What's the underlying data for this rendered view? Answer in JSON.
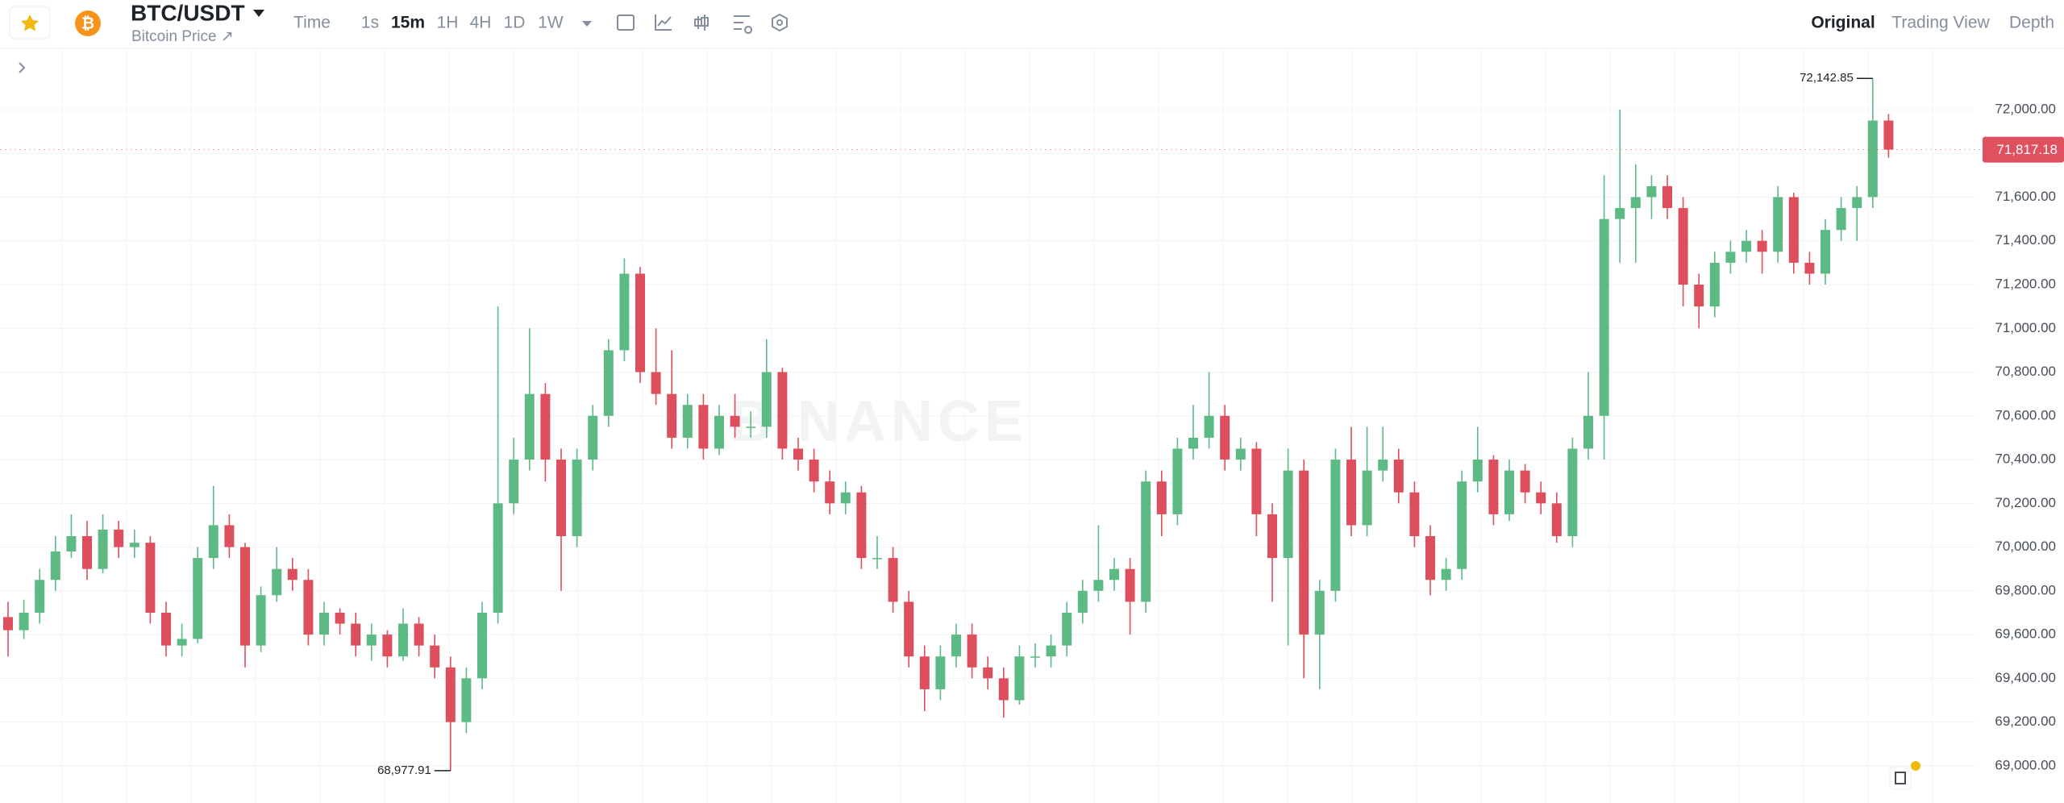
{
  "header": {
    "symbol": "BTC/USDT",
    "subtitle": "Bitcoin Price ↗",
    "intervals": [
      "Time",
      "1s",
      "15m",
      "1H",
      "4H",
      "1D",
      "1W"
    ],
    "active_interval": "15m",
    "views": [
      "Original",
      "Trading View",
      "Depth"
    ],
    "active_view": "Original"
  },
  "chart_data": {
    "type": "candlestick",
    "watermark": "BINANCE",
    "up_color": "#5dba85",
    "down_color": "#dd4f5d",
    "grid": true,
    "ylim": [
      68830,
      72280
    ],
    "yticks": [
      {
        "value": 69000,
        "label": "69,000.00"
      },
      {
        "value": 69200,
        "label": "69,200.00"
      },
      {
        "value": 69400,
        "label": "69,400.00"
      },
      {
        "value": 69600,
        "label": "69,600.00"
      },
      {
        "value": 69800,
        "label": "69,800.00"
      },
      {
        "value": 70000,
        "label": "70,000.00"
      },
      {
        "value": 70200,
        "label": "70,200.00"
      },
      {
        "value": 70400,
        "label": "70,400.00"
      },
      {
        "value": 70600,
        "label": "70,600.00"
      },
      {
        "value": 70800,
        "label": "70,800.00"
      },
      {
        "value": 71000,
        "label": "71,000.00"
      },
      {
        "value": 71200,
        "label": "71,200.00"
      },
      {
        "value": 71400,
        "label": "71,400.00"
      },
      {
        "value": 71600,
        "label": "71,600.00"
      },
      {
        "value": 71800,
        "label": "71,800.00"
      },
      {
        "value": 72000,
        "label": "72,000.00"
      }
    ],
    "max_label": {
      "value": 72142.85,
      "label": "72,142.85"
    },
    "min_label": {
      "value": 68977.91,
      "label": "68,977.91"
    },
    "last_price": {
      "value": 71817.18,
      "label": "71,817.18"
    },
    "candles": [
      [
        69680,
        69750,
        69500,
        69620
      ],
      [
        69620,
        69760,
        69580,
        69700
      ],
      [
        69700,
        69900,
        69650,
        69850
      ],
      [
        69850,
        70050,
        69800,
        69980
      ],
      [
        69980,
        70150,
        69950,
        70050
      ],
      [
        70050,
        70120,
        69850,
        69900
      ],
      [
        69900,
        70150,
        69880,
        70080
      ],
      [
        70080,
        70120,
        69950,
        70000
      ],
      [
        70000,
        70080,
        69950,
        70020
      ],
      [
        70020,
        70050,
        69650,
        69700
      ],
      [
        69700,
        69750,
        69500,
        69550
      ],
      [
        69550,
        69650,
        69500,
        69580
      ],
      [
        69580,
        70000,
        69560,
        69950
      ],
      [
        69950,
        70280,
        69900,
        70100
      ],
      [
        70100,
        70150,
        69950,
        70000
      ],
      [
        70000,
        70020,
        69450,
        69550
      ],
      [
        69550,
        69820,
        69520,
        69780
      ],
      [
        69780,
        70000,
        69750,
        69900
      ],
      [
        69900,
        69950,
        69800,
        69850
      ],
      [
        69850,
        69900,
        69550,
        69600
      ],
      [
        69600,
        69750,
        69550,
        69700
      ],
      [
        69700,
        69720,
        69600,
        69650
      ],
      [
        69650,
        69700,
        69500,
        69550
      ],
      [
        69550,
        69650,
        69480,
        69600
      ],
      [
        69600,
        69620,
        69450,
        69500
      ],
      [
        69500,
        69720,
        69480,
        69650
      ],
      [
        69650,
        69680,
        69500,
        69550
      ],
      [
        69550,
        69600,
        69400,
        69450
      ],
      [
        69450,
        69500,
        68977.91,
        69200
      ],
      [
        69200,
        69450,
        69150,
        69400
      ],
      [
        69400,
        69750,
        69350,
        69700
      ],
      [
        69700,
        71100,
        69650,
        70200
      ],
      [
        70200,
        70500,
        70150,
        70400
      ],
      [
        70400,
        71000,
        70350,
        70700
      ],
      [
        70700,
        70750,
        70300,
        70400
      ],
      [
        70400,
        70450,
        69800,
        70050
      ],
      [
        70050,
        70450,
        70000,
        70400
      ],
      [
        70400,
        70650,
        70350,
        70600
      ],
      [
        70600,
        70950,
        70550,
        70900
      ],
      [
        70900,
        71320,
        70850,
        71250
      ],
      [
        71250,
        71280,
        70750,
        70800
      ],
      [
        70800,
        71000,
        70650,
        70700
      ],
      [
        70700,
        70900,
        70450,
        70500
      ],
      [
        70500,
        70700,
        70450,
        70650
      ],
      [
        70650,
        70700,
        70400,
        70450
      ],
      [
        70450,
        70650,
        70420,
        70600
      ],
      [
        70600,
        70700,
        70500,
        70550
      ],
      [
        70550,
        70620,
        70500,
        70550
      ],
      [
        70550,
        70950,
        70500,
        70800
      ],
      [
        70800,
        70820,
        70400,
        70450
      ],
      [
        70450,
        70500,
        70350,
        70400
      ],
      [
        70400,
        70450,
        70250,
        70300
      ],
      [
        70300,
        70350,
        70150,
        70200
      ],
      [
        70200,
        70300,
        70150,
        70250
      ],
      [
        70250,
        70280,
        69900,
        69950
      ],
      [
        69950,
        70050,
        69900,
        69950
      ],
      [
        69950,
        70000,
        69700,
        69750
      ],
      [
        69750,
        69800,
        69450,
        69500
      ],
      [
        69500,
        69550,
        69250,
        69350
      ],
      [
        69350,
        69550,
        69300,
        69500
      ],
      [
        69500,
        69650,
        69450,
        69600
      ],
      [
        69600,
        69650,
        69400,
        69450
      ],
      [
        69450,
        69500,
        69350,
        69400
      ],
      [
        69400,
        69450,
        69220,
        69300
      ],
      [
        69300,
        69550,
        69280,
        69500
      ],
      [
        69500,
        69560,
        69450,
        69500
      ],
      [
        69500,
        69600,
        69450,
        69550
      ],
      [
        69550,
        69750,
        69500,
        69700
      ],
      [
        69700,
        69850,
        69650,
        69800
      ],
      [
        69800,
        70100,
        69750,
        69850
      ],
      [
        69850,
        69950,
        69800,
        69900
      ],
      [
        69900,
        69950,
        69600,
        69750
      ],
      [
        69750,
        70350,
        69700,
        70300
      ],
      [
        70300,
        70350,
        70050,
        70150
      ],
      [
        70150,
        70500,
        70100,
        70450
      ],
      [
        70450,
        70650,
        70400,
        70500
      ],
      [
        70500,
        70800,
        70450,
        70600
      ],
      [
        70600,
        70650,
        70350,
        70400
      ],
      [
        70400,
        70500,
        70350,
        70450
      ],
      [
        70450,
        70480,
        70050,
        70150
      ],
      [
        70150,
        70200,
        69750,
        69950
      ],
      [
        69950,
        70450,
        69550,
        70350
      ],
      [
        70350,
        70400,
        69400,
        69600
      ],
      [
        69600,
        69850,
        69350,
        69800
      ],
      [
        69800,
        70450,
        69750,
        70400
      ],
      [
        70400,
        70550,
        70050,
        70100
      ],
      [
        70100,
        70550,
        70050,
        70350
      ],
      [
        70350,
        70550,
        70300,
        70400
      ],
      [
        70400,
        70450,
        70200,
        70250
      ],
      [
        70250,
        70300,
        70000,
        70050
      ],
      [
        70050,
        70100,
        69780,
        69850
      ],
      [
        69850,
        69950,
        69800,
        69900
      ],
      [
        69900,
        70350,
        69850,
        70300
      ],
      [
        70300,
        70550,
        70250,
        70400
      ],
      [
        70400,
        70420,
        70100,
        70150
      ],
      [
        70150,
        70400,
        70120,
        70350
      ],
      [
        70350,
        70380,
        70200,
        70250
      ],
      [
        70250,
        70300,
        70150,
        70200
      ],
      [
        70200,
        70250,
        70020,
        70050
      ],
      [
        70050,
        70500,
        70000,
        70450
      ],
      [
        70450,
        70800,
        70400,
        70600
      ],
      [
        70600,
        71700,
        70400,
        71500
      ],
      [
        71500,
        72000,
        71300,
        71550
      ],
      [
        71550,
        71750,
        71300,
        71600
      ],
      [
        71600,
        71700,
        71500,
        71650
      ],
      [
        71650,
        71700,
        71500,
        71550
      ],
      [
        71550,
        71600,
        71100,
        71200
      ],
      [
        71200,
        71250,
        71000,
        71100
      ],
      [
        71100,
        71350,
        71050,
        71300
      ],
      [
        71300,
        71400,
        71250,
        71350
      ],
      [
        71350,
        71450,
        71300,
        71400
      ],
      [
        71400,
        71450,
        71250,
        71350
      ],
      [
        71350,
        71650,
        71300,
        71600
      ],
      [
        71600,
        71620,
        71250,
        71300
      ],
      [
        71300,
        71350,
        71200,
        71250
      ],
      [
        71250,
        71500,
        71200,
        71450
      ],
      [
        71450,
        71600,
        71400,
        71550
      ],
      [
        71550,
        71650,
        71400,
        71600
      ],
      [
        71600,
        72142.85,
        71550,
        71950
      ],
      [
        71950,
        71980,
        71780,
        71817.18
      ]
    ]
  }
}
